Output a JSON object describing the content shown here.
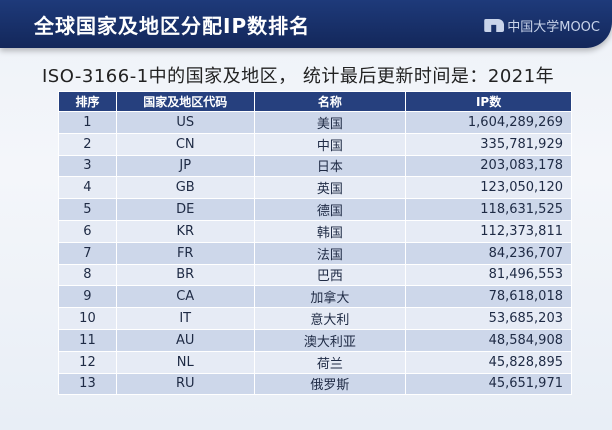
{
  "header": {
    "title": "全球国家及地区分配IP数排名",
    "logo_text": "中国大学MOOC"
  },
  "subtitle": "ISO-3166-1中的国家及地区， 统计最后更新时间是：2021年",
  "table": {
    "headers": [
      "排序",
      "国家及地区代码",
      "名称",
      "IP数"
    ],
    "rows": [
      {
        "rank": "1",
        "code": "US",
        "name": "美国",
        "ip": "1,604,289,269"
      },
      {
        "rank": "2",
        "code": "CN",
        "name": "中国",
        "ip": "335,781,929"
      },
      {
        "rank": "3",
        "code": "JP",
        "name": "日本",
        "ip": "203,083,178"
      },
      {
        "rank": "4",
        "code": "GB",
        "name": "英国",
        "ip": "123,050,120"
      },
      {
        "rank": "5",
        "code": "DE",
        "name": "德国",
        "ip": "118,631,525"
      },
      {
        "rank": "6",
        "code": "KR",
        "name": "韩国",
        "ip": "112,373,811"
      },
      {
        "rank": "7",
        "code": "FR",
        "name": "法国",
        "ip": "84,236,707"
      },
      {
        "rank": "8",
        "code": "BR",
        "name": "巴西",
        "ip": "81,496,553"
      },
      {
        "rank": "9",
        "code": "CA",
        "name": "加拿大",
        "ip": "78,618,018"
      },
      {
        "rank": "10",
        "code": "IT",
        "name": "意大利",
        "ip": "53,685,203"
      },
      {
        "rank": "11",
        "code": "AU",
        "name": "澳大利亚",
        "ip": "48,584,908"
      },
      {
        "rank": "12",
        "code": "NL",
        "name": "荷兰",
        "ip": "45,828,895"
      },
      {
        "rank": "13",
        "code": "RU",
        "name": "俄罗斯",
        "ip": "45,651,971"
      }
    ]
  }
}
